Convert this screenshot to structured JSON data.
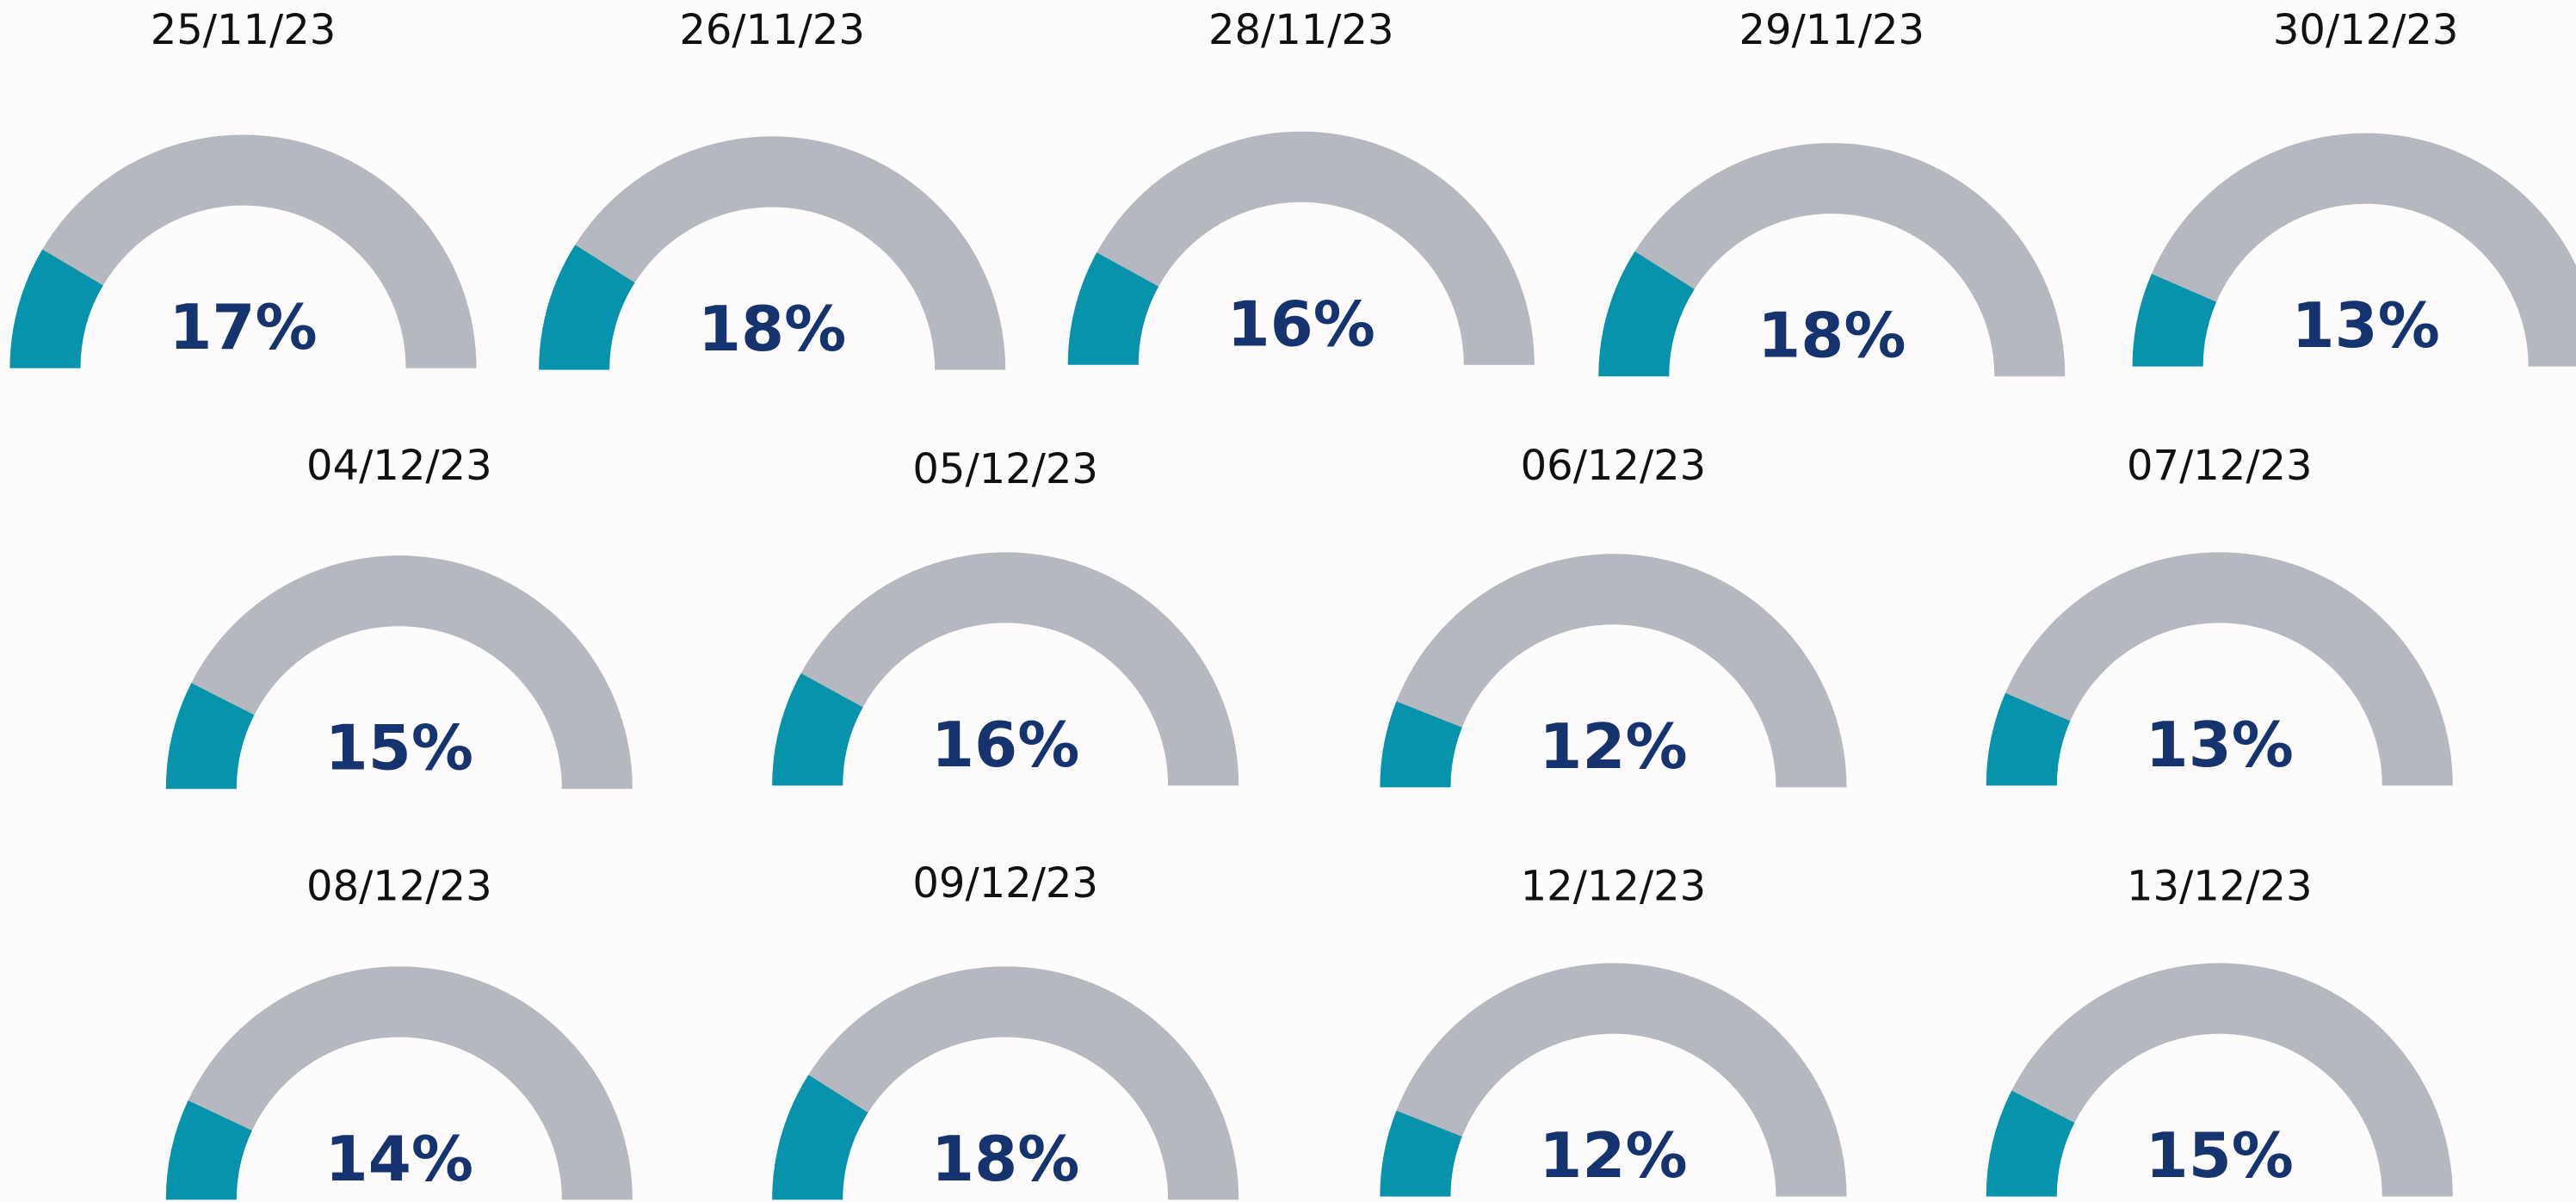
{
  "chart_data": [
    {
      "type": "gauge",
      "title": "25/11/23",
      "value": 17,
      "value_label": "17%",
      "ylim": [
        0,
        100
      ],
      "color": "#0893ad",
      "track_color": "#b5b8bf"
    },
    {
      "type": "gauge",
      "title": "26/11/23",
      "value": 18,
      "value_label": "18%",
      "ylim": [
        0,
        100
      ],
      "color": "#0893ad",
      "track_color": "#b5b8bf"
    },
    {
      "type": "gauge",
      "title": "28/11/23",
      "value": 16,
      "value_label": "16%",
      "ylim": [
        0,
        100
      ],
      "color": "#0893ad",
      "track_color": "#b5b8bf"
    },
    {
      "type": "gauge",
      "title": "29/11/23",
      "value": 18,
      "value_label": "18%",
      "ylim": [
        0,
        100
      ],
      "color": "#0893ad",
      "track_color": "#b5b8bf"
    },
    {
      "type": "gauge",
      "title": "30/12/23",
      "value": 13,
      "value_label": "13%",
      "ylim": [
        0,
        100
      ],
      "color": "#0893ad",
      "track_color": "#b5b8bf"
    },
    {
      "type": "gauge",
      "title": "04/12/23",
      "value": 15,
      "value_label": "15%",
      "ylim": [
        0,
        100
      ],
      "color": "#0893ad",
      "track_color": "#b5b8bf"
    },
    {
      "type": "gauge",
      "title": "05/12/23",
      "value": 16,
      "value_label": "16%",
      "ylim": [
        0,
        100
      ],
      "color": "#0893ad",
      "track_color": "#b5b8bf"
    },
    {
      "type": "gauge",
      "title": "06/12/23",
      "value": 12,
      "value_label": "12%",
      "ylim": [
        0,
        100
      ],
      "color": "#0893ad",
      "track_color": "#b5b8bf"
    },
    {
      "type": "gauge",
      "title": "07/12/23",
      "value": 13,
      "value_label": "13%",
      "ylim": [
        0,
        100
      ],
      "color": "#0893ad",
      "track_color": "#b5b8bf"
    },
    {
      "type": "gauge",
      "title": "08/12/23",
      "value": 14,
      "value_label": "14%",
      "ylim": [
        0,
        100
      ],
      "color": "#0893ad",
      "track_color": "#b5b8bf"
    },
    {
      "type": "gauge",
      "title": "09/12/23",
      "value": 18,
      "value_label": "18%",
      "ylim": [
        0,
        100
      ],
      "color": "#0893ad",
      "track_color": "#b5b8bf"
    },
    {
      "type": "gauge",
      "title": "12/12/23",
      "value": 12,
      "value_label": "12%",
      "ylim": [
        0,
        100
      ],
      "color": "#0893ad",
      "track_color": "#b5b8bf"
    },
    {
      "type": "gauge",
      "title": "13/12/23",
      "value": 15,
      "value_label": "15%",
      "ylim": [
        0,
        100
      ],
      "color": "#0893ad",
      "track_color": "#b5b8bf"
    }
  ]
}
